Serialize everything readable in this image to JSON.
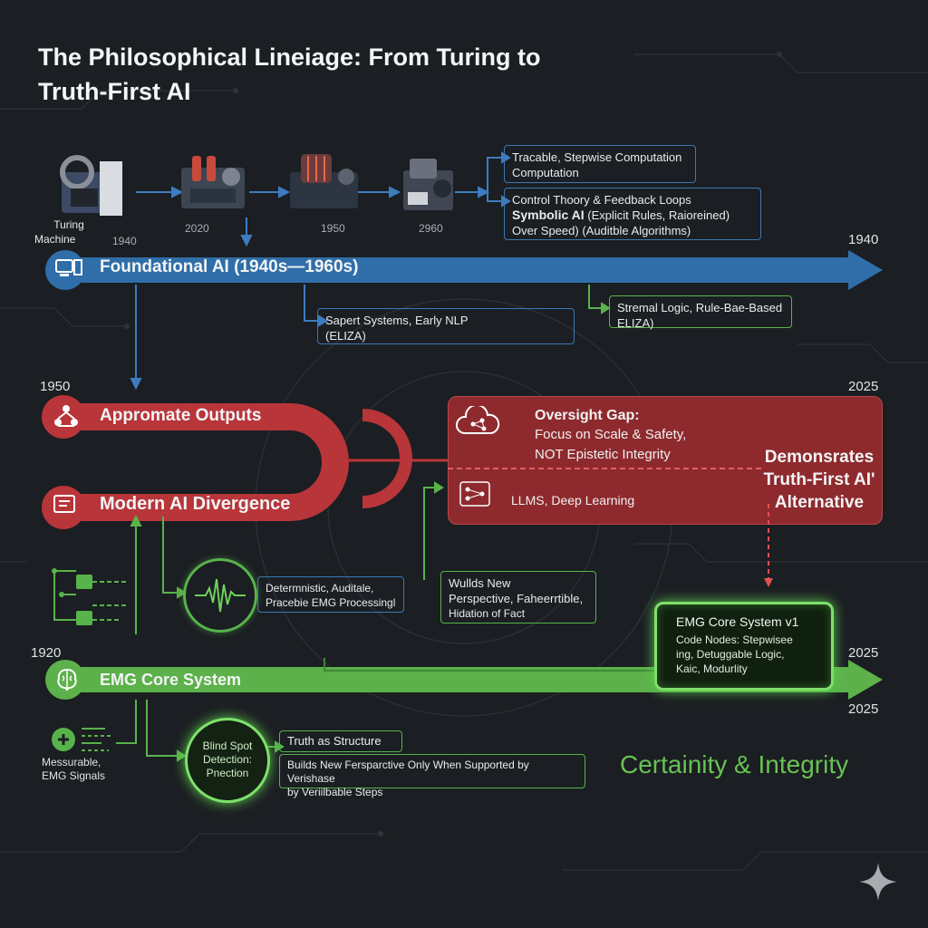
{
  "title": {
    "line1": "The Philosophical Lineiage: From Turing to",
    "line2": "Truth-First AI"
  },
  "machines": [
    {
      "label1": "Turing",
      "label2": "Machine",
      "year": "1940"
    },
    {
      "year": "2020"
    },
    {
      "year": "1950"
    },
    {
      "year": "2960"
    }
  ],
  "top_boxes": {
    "box1": {
      "line1": "Tracable, Stepwise Computation",
      "line2": "Computation"
    },
    "box2": {
      "line1": "Control Thoory & Feedback Loops",
      "line2a": "Symbolic AI",
      "line2b": "(Explicit Rules, Raioreined)",
      "line3": "Over Speed)  (Auditble Algorithms)"
    }
  },
  "foundational": {
    "label": "Foundational AI (1940s—1960s)",
    "year_right": "1940"
  },
  "mid_boxes": {
    "expert": {
      "line1": "Sapert Systems, Early NLP",
      "line2": "(ELIZA)"
    },
    "logic": {
      "line1": "Stremal Logic, Rule-Bae-Based",
      "line2": "ELIZA)"
    }
  },
  "red": {
    "year_left": "1950",
    "year_right": "2025",
    "approx": "Appromate Outputs",
    "divergence": "Modern AI Divergence",
    "gap_title": "Oversight Gap:",
    "gap_line1": "Focus on Scale & Safety,",
    "gap_line2": "NOT Epistetic Integrity",
    "llms": "LLMS, Deep Learning",
    "demo1": "Demonsrates",
    "demo2": "Truth-First AI'",
    "demo3": "Alternative"
  },
  "lower": {
    "emg_proc": {
      "line1": "Determnistic, Auditale,",
      "line2": "Pracebie EMG Processingl"
    },
    "builds": {
      "line1": "Wullds New",
      "line2": "Perspective, Faheerrtible,",
      "line3": "Hidation of Fact"
    },
    "core_v1": {
      "title": "EMG Core System v1",
      "line1": "Code Nodes: Stepwisee",
      "line2": "ing, Detuggable Logic,",
      "line3": "Kaic, Modurlity"
    }
  },
  "green": {
    "year_left": "1920",
    "year_right_top": "2025",
    "year_right_bottom": "2025",
    "label": "EMG Core System",
    "signals1": "Messurable,",
    "signals2": "EMG Signals",
    "blind1": "Blind Spot",
    "blind2": "Detection:",
    "blind3": "Pnection",
    "truth": "Truth as Structure",
    "builds2_line1": "Builds New Fersparctive Only When Supported by Verishase",
    "builds2_line2": "by Veriilbable Steps",
    "certainty": "Certainity & Integrity"
  },
  "colors": {
    "blue": "#2f6ea8",
    "red": "#b8353a",
    "green": "#5cb14a",
    "bg": "#1b1e22"
  }
}
